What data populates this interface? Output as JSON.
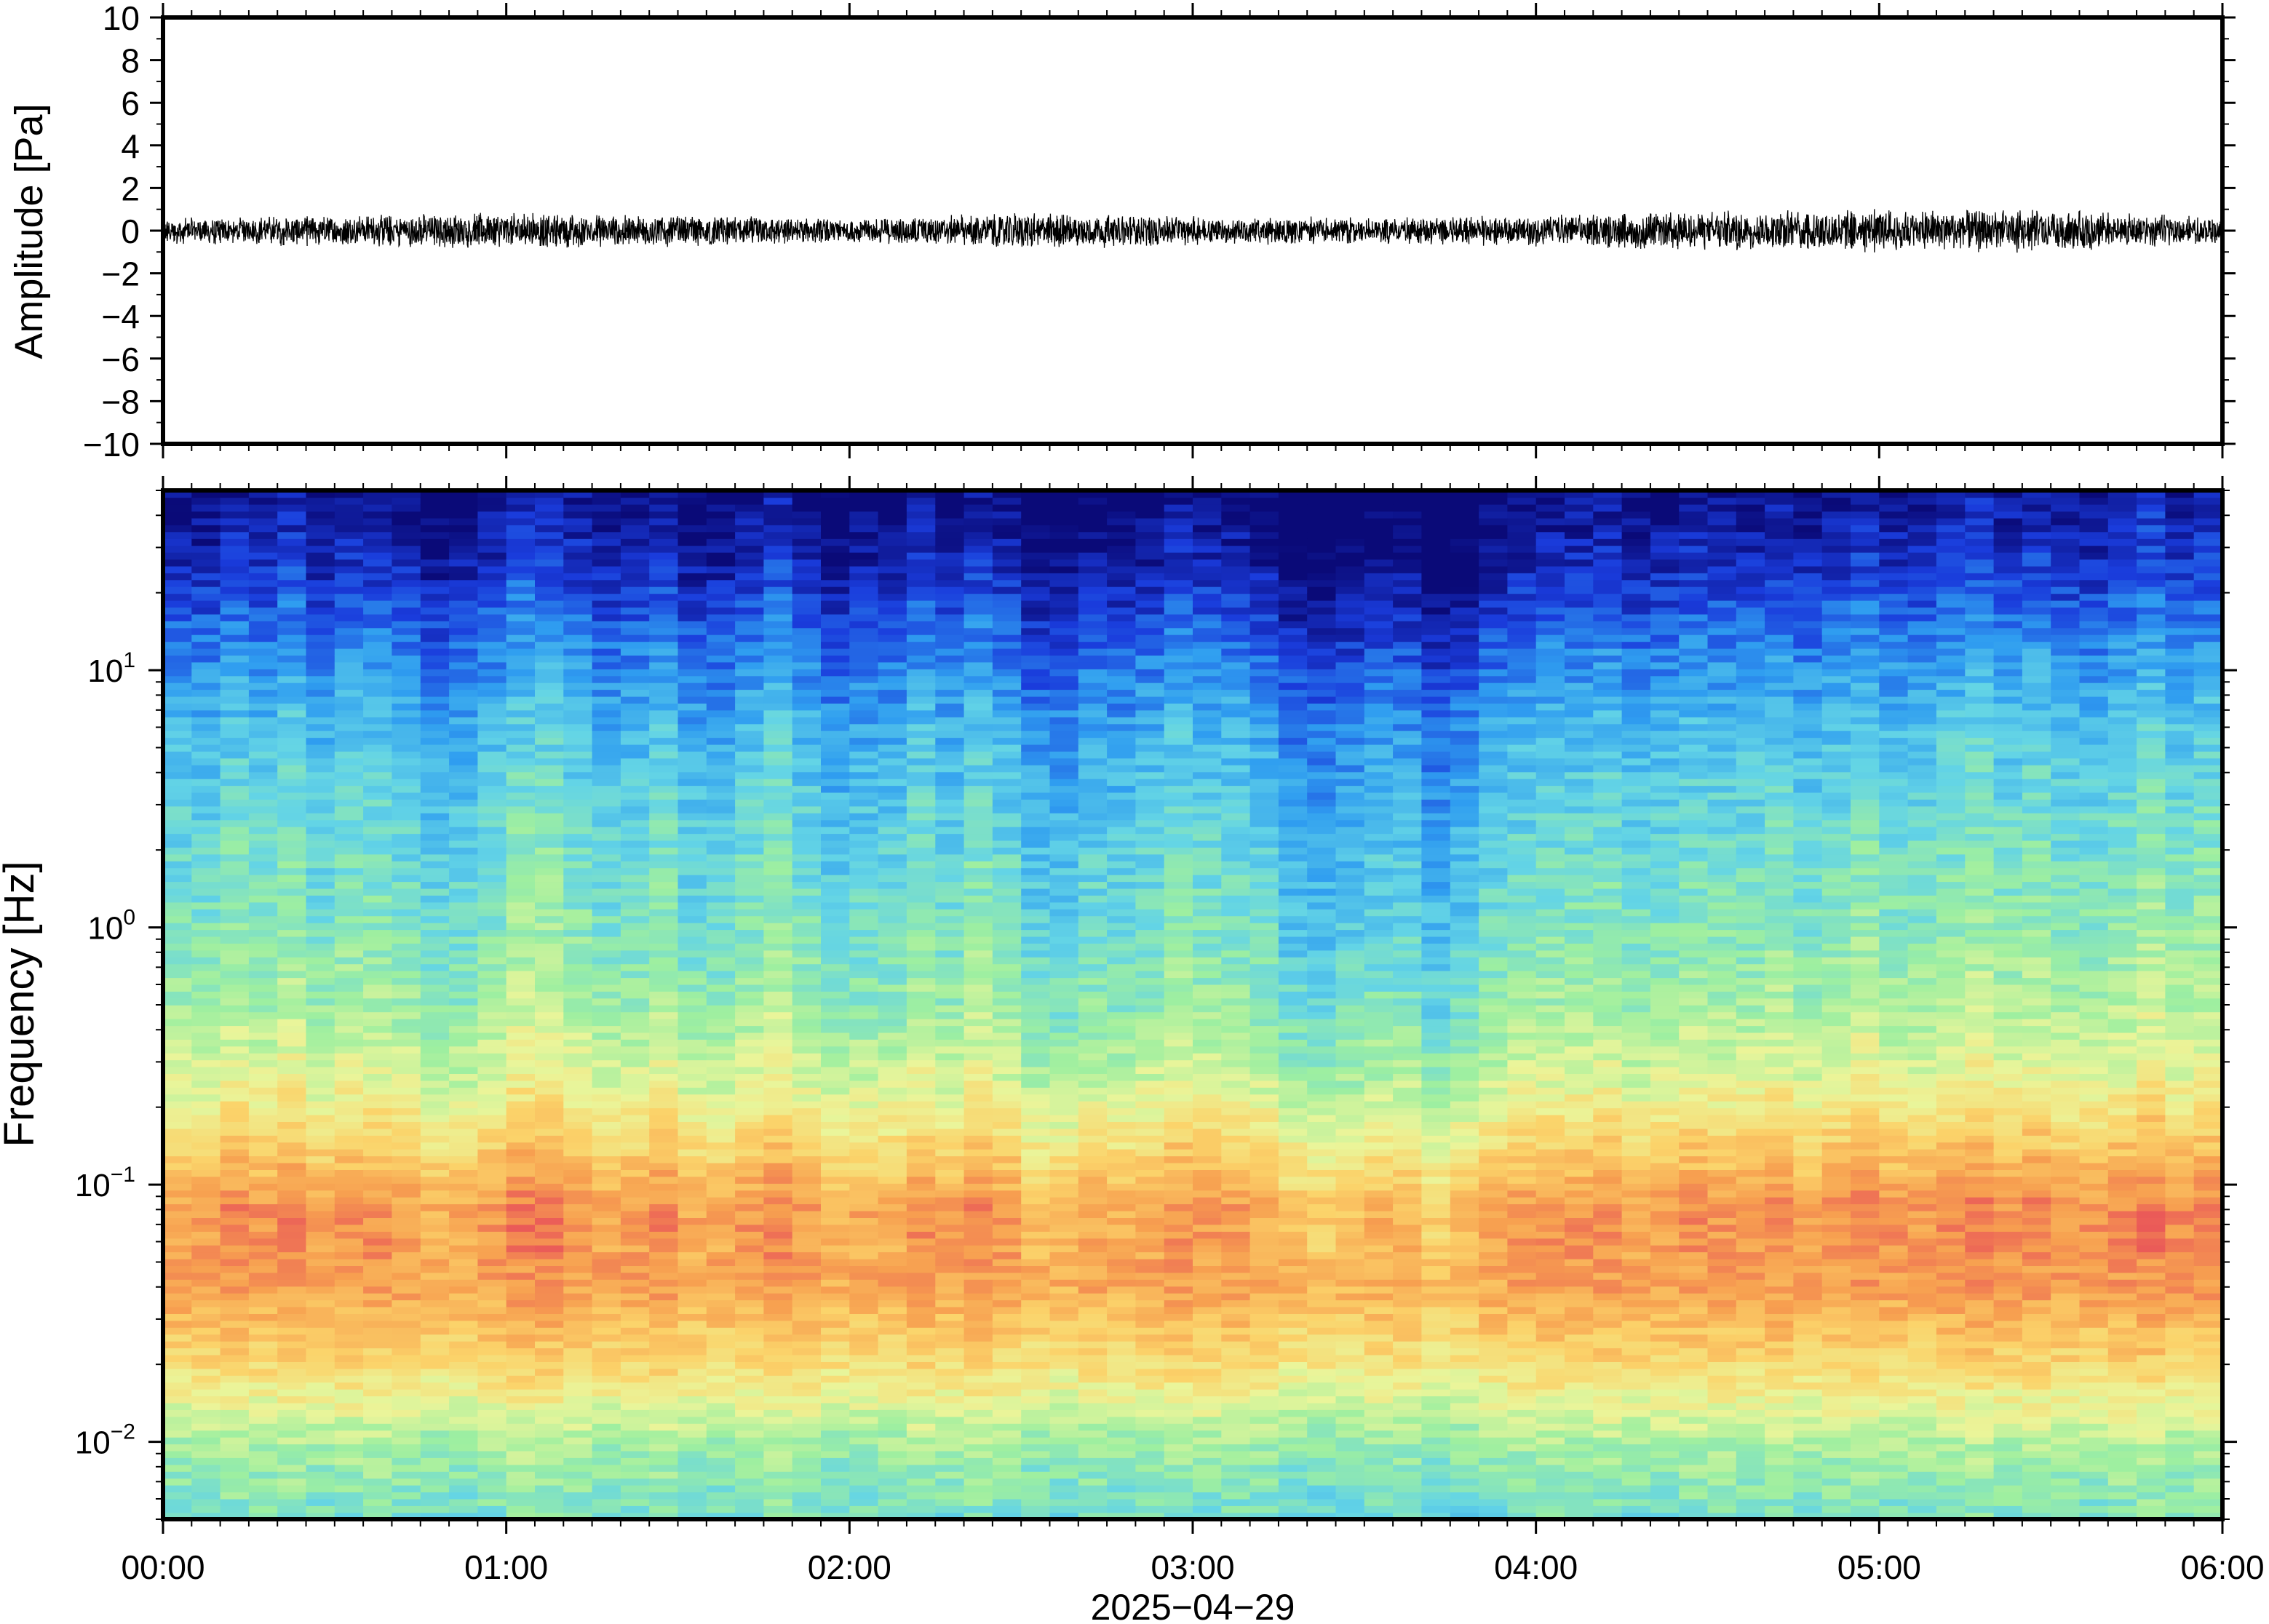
{
  "chart_data": [
    {
      "type": "line",
      "panel": "waveform",
      "ylabel": "Amplitude [Pa]",
      "ylim": [
        -10,
        10
      ],
      "yticks": [
        10,
        8,
        6,
        4,
        2,
        0,
        -2,
        -4,
        -6,
        -8,
        -10
      ],
      "ytick_labels": [
        "10",
        "8",
        "6",
        "4",
        "2",
        "0",
        "−2",
        "−4",
        "−6",
        "−8",
        "−10"
      ],
      "x_range": [
        "00:00",
        "06:00"
      ],
      "x": [
        "00:00",
        "00:30",
        "01:00",
        "01:30",
        "02:00",
        "02:30",
        "03:00",
        "03:30",
        "04:00",
        "04:30",
        "05:00",
        "05:30",
        "06:00"
      ],
      "envelope_pa": [
        0.5,
        0.6,
        0.7,
        0.6,
        0.45,
        0.7,
        0.55,
        0.5,
        0.6,
        0.75,
        0.85,
        0.8,
        0.5
      ],
      "grid": false,
      "color": "#000000"
    },
    {
      "type": "heatmap",
      "panel": "spectrogram",
      "ylabel": "Frequency [Hz]",
      "yscale": "log",
      "ylim_hz": [
        0.005,
        50
      ],
      "yticks_hz": [
        0.01,
        0.1,
        1,
        10
      ],
      "ytick_labels": [
        {
          "base": "10",
          "exp": "−2"
        },
        {
          "base": "10",
          "exp": "−1"
        },
        {
          "base": "10",
          "exp": "0"
        },
        {
          "base": "10",
          "exp": "1"
        }
      ],
      "colormap": [
        "#0a0a78",
        "#1a3cdc",
        "#2f9df0",
        "#63d4e6",
        "#9eefa0",
        "#eaf59a",
        "#fbd36a",
        "#f7a050",
        "#ea5a58"
      ],
      "column_variation": [
        0.0,
        0.15,
        0.05,
        0.2,
        -0.05,
        0.1,
        0.0,
        -0.15,
        -0.1,
        0.05,
        0.25,
        0.1,
        -0.05,
        0.0,
        0.15,
        -0.1,
        0.05,
        0.2,
        0.0,
        -0.2,
        -0.1,
        0.1,
        -0.05,
        0.15,
        0.0,
        -0.25,
        -0.1,
        -0.15,
        -0.05,
        0.1,
        0.0,
        -0.1,
        -0.35,
        -0.4,
        -0.3,
        -0.2,
        -0.45,
        -0.3,
        -0.1,
        0.0,
        0.05,
        0.1,
        -0.05,
        0.0,
        0.1,
        0.05,
        0.15,
        0.0,
        0.1,
        0.2,
        0.05,
        0.15,
        0.25,
        0.1,
        0.2,
        0.05,
        0.15,
        0.3,
        0.1,
        0.2
      ],
      "grid": false
    }
  ],
  "xaxis": {
    "tick_labels": [
      "00:00",
      "01:00",
      "02:00",
      "03:00",
      "04:00",
      "05:00",
      "06:00"
    ],
    "date_label": "2025−04−29"
  }
}
